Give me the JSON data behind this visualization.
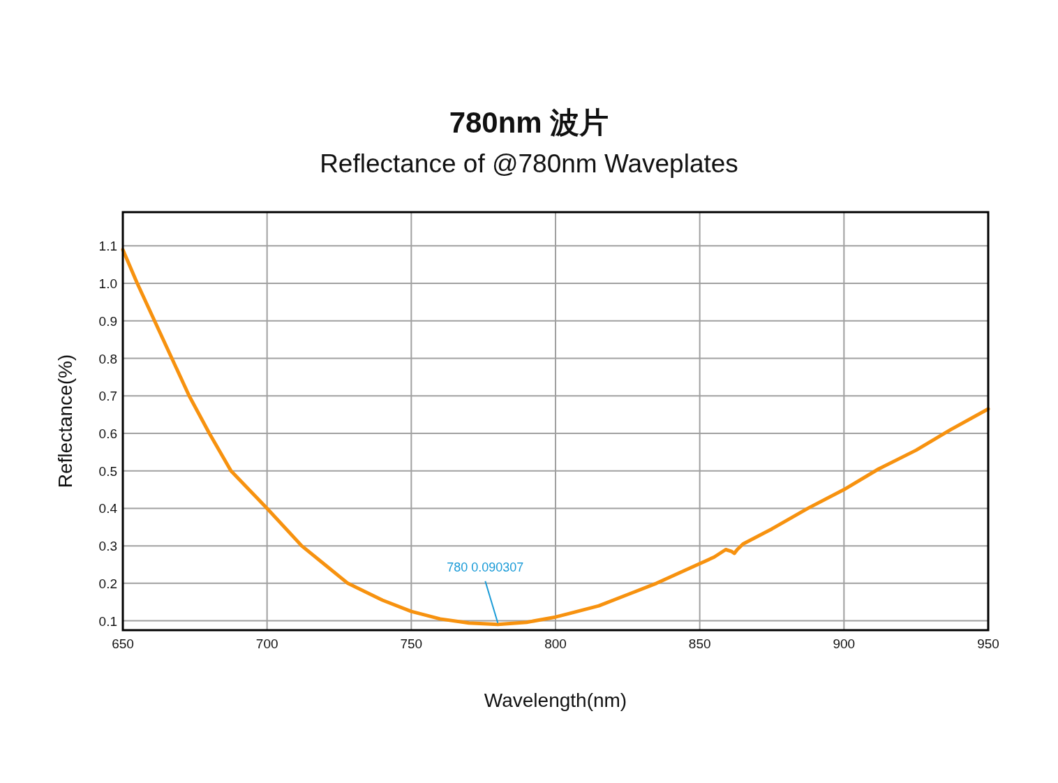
{
  "chart_data": {
    "type": "line",
    "title": "780nm 波片",
    "subtitle": "Reflectance of @780nm Waveplates",
    "xlabel": "Wavelength(nm)",
    "ylabel": "Reflectance(%)",
    "x": [
      650,
      655,
      661,
      667,
      673,
      680,
      687.5,
      700,
      712,
      720,
      728,
      740,
      750,
      760,
      770,
      780,
      790,
      800,
      805,
      815,
      825,
      835,
      845,
      855,
      859,
      861,
      862,
      863,
      865,
      875,
      887.5,
      900,
      912,
      925,
      937,
      950
    ],
    "series": [
      {
        "color": "#f7920f",
        "values": [
          1.09,
          1.0,
          0.9,
          0.8,
          0.7,
          0.6,
          0.5,
          0.4,
          0.3,
          0.25,
          0.2,
          0.155,
          0.125,
          0.105,
          0.094,
          0.090307,
          0.096,
          0.11,
          0.12,
          0.14,
          0.17,
          0.2,
          0.235,
          0.27,
          0.29,
          0.285,
          0.28,
          0.29,
          0.305,
          0.345,
          0.4,
          0.45,
          0.505,
          0.555,
          0.61,
          0.665
        ]
      }
    ],
    "xlim": [
      650,
      950
    ],
    "ylim": [
      0.075,
      1.19
    ],
    "xticks": [
      650,
      700,
      750,
      800,
      850,
      900,
      950
    ],
    "yticks": [
      0.1,
      0.2,
      0.3,
      0.4,
      0.5,
      0.6,
      0.7,
      0.8,
      0.9,
      {
        "value": 1,
        "label": "1.0"
      },
      1.1
    ],
    "grid": true,
    "annotations": [
      {
        "text": "780 0.090307",
        "x": 780,
        "y": 0.090307
      }
    ]
  }
}
